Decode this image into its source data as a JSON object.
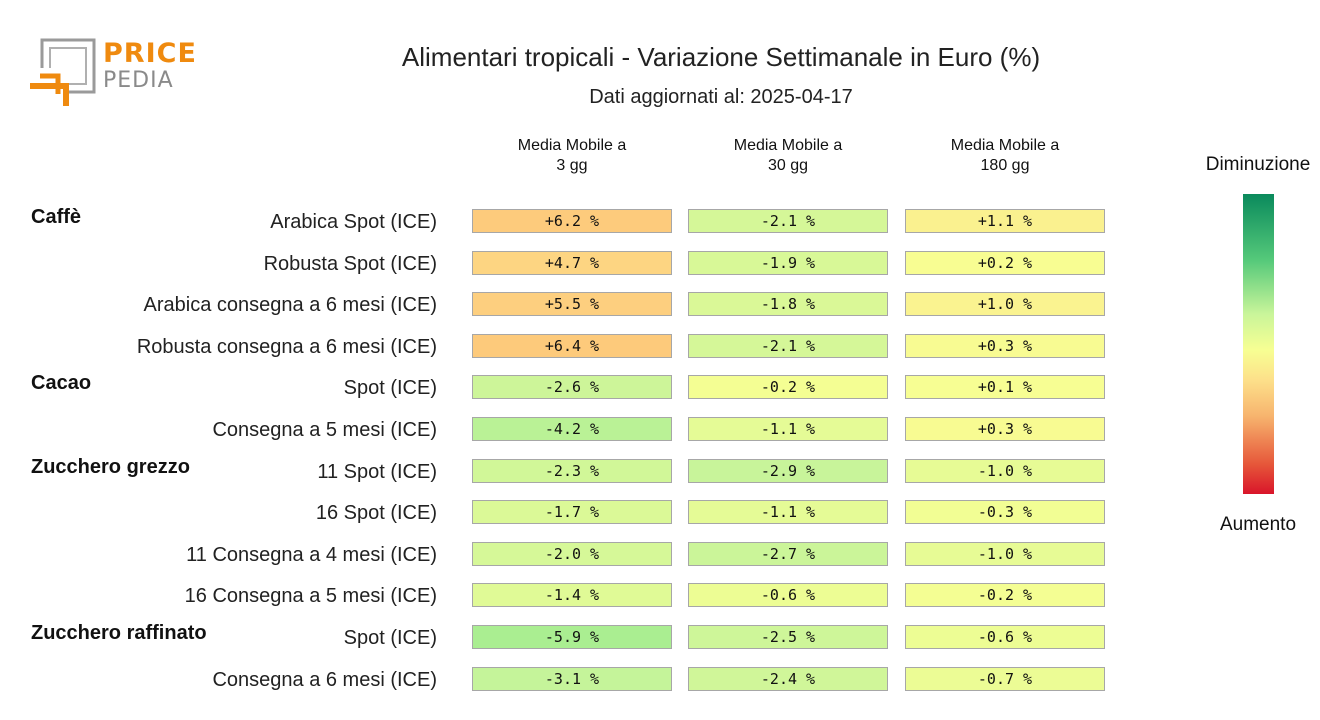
{
  "logo": {
    "line1": "PRICE",
    "line2": "PEDIA",
    "colors": {
      "orange": "#ef8a0f",
      "gray": "#8a8a8a"
    }
  },
  "header": {
    "title": "Alimentari tropicali - Variazione Settimanale in Euro (%)",
    "subtitle": "Dati aggiornati al: 2025-04-17"
  },
  "legend": {
    "top_label": "Diminuzione",
    "bottom_label": "Aumento"
  },
  "chart_data": {
    "type": "heatmap",
    "columns": [
      "Media Mobile a\n3 gg",
      "Media Mobile a\n30 gg",
      "Media Mobile a\n180 gg"
    ],
    "groups": [
      {
        "name": "Caffè",
        "rows": [
          {
            "label": "Arabica Spot (ICE)",
            "values": [
              6.2,
              -2.1,
              1.1
            ],
            "display": [
              "+6.2 %",
              "-2.1 %",
              "+1.1 %"
            ]
          },
          {
            "label": "Robusta Spot (ICE)",
            "values": [
              4.7,
              -1.9,
              0.2
            ],
            "display": [
              "+4.7 %",
              "-1.9 %",
              "+0.2 %"
            ]
          },
          {
            "label": "Arabica consegna a 6 mesi (ICE)",
            "values": [
              5.5,
              -1.8,
              1.0
            ],
            "display": [
              "+5.5 %",
              "-1.8 %",
              "+1.0 %"
            ]
          },
          {
            "label": "Robusta consegna a 6 mesi (ICE)",
            "values": [
              6.4,
              -2.1,
              0.3
            ],
            "display": [
              "+6.4 %",
              "-2.1 %",
              "+0.3 %"
            ]
          }
        ]
      },
      {
        "name": "Cacao",
        "rows": [
          {
            "label": "Spot (ICE)",
            "values": [
              -2.6,
              -0.2,
              0.1
            ],
            "display": [
              "-2.6 %",
              "-0.2 %",
              "+0.1 %"
            ]
          },
          {
            "label": "Consegna a 5 mesi (ICE)",
            "values": [
              -4.2,
              -1.1,
              0.3
            ],
            "display": [
              "-4.2 %",
              "-1.1 %",
              "+0.3 %"
            ]
          }
        ]
      },
      {
        "name": "Zucchero grezzo",
        "rows": [
          {
            "label": "11 Spot (ICE)",
            "values": [
              -2.3,
              -2.9,
              -1.0
            ],
            "display": [
              "-2.3 %",
              "-2.9 %",
              "-1.0 %"
            ]
          },
          {
            "label": "16 Spot (ICE)",
            "values": [
              -1.7,
              -1.1,
              -0.3
            ],
            "display": [
              "-1.7 %",
              "-1.1 %",
              "-0.3 %"
            ]
          },
          {
            "label": "11 Consegna a 4 mesi (ICE)",
            "values": [
              -2.0,
              -2.7,
              -1.0
            ],
            "display": [
              "-2.0 %",
              "-2.7 %",
              "-1.0 %"
            ]
          },
          {
            "label": "16 Consegna a 5 mesi (ICE)",
            "values": [
              -1.4,
              -0.6,
              -0.2
            ],
            "display": [
              "-1.4 %",
              "-0.6 %",
              "-0.2 %"
            ]
          }
        ]
      },
      {
        "name": "Zucchero raffinato",
        "rows": [
          {
            "label": "Spot (ICE)",
            "values": [
              -5.9,
              -2.5,
              -0.6
            ],
            "display": [
              "-5.9 %",
              "-2.5 %",
              "-0.6 %"
            ]
          },
          {
            "label": "Consegna a 6 mesi (ICE)",
            "values": [
              -3.1,
              -2.4,
              -0.7
            ],
            "display": [
              "-3.1 %",
              "-2.4 %",
              "-0.7 %"
            ]
          }
        ]
      }
    ],
    "color_scale": {
      "decrease": "#0a8a5c",
      "neutral": "#f7ff93",
      "increase": "#d9152a"
    }
  }
}
